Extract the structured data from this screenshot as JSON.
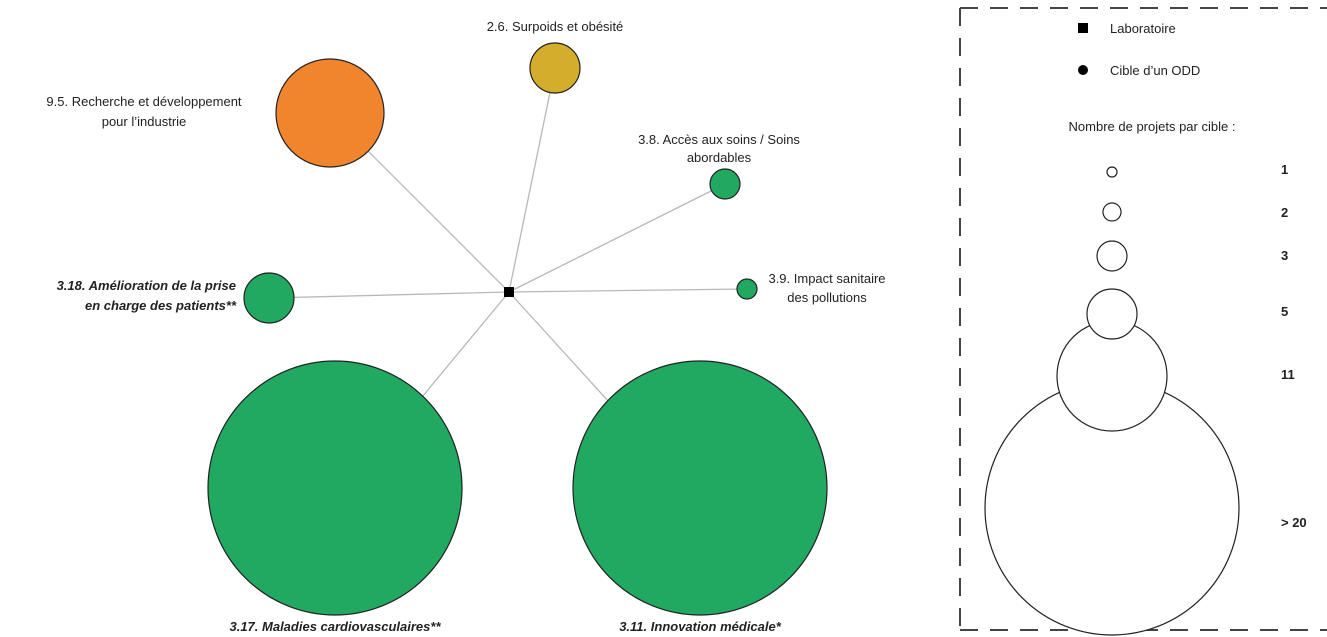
{
  "diagram": {
    "hub": {
      "label": ""
    },
    "nodes": [
      {
        "id": "sdg-9-5",
        "label_lines": [
          "9.5. Recherche et développement",
          "pour l’industrie"
        ],
        "color": "#f0852d",
        "emphasis": false,
        "projects": 5
      },
      {
        "id": "sdg-2-6",
        "label_lines": [
          "2.6. Surpoids et obésité"
        ],
        "color": "#d3ad2b",
        "emphasis": false,
        "projects": 2
      },
      {
        "id": "sdg-3-8",
        "label_lines": [
          "3.8. Accès aux soins / Soins",
          "abordables"
        ],
        "color": "#21a861",
        "emphasis": false,
        "projects": 1
      },
      {
        "id": "sdg-3-9",
        "label_lines": [
          "3.9. Impact sanitaire",
          "des pollutions"
        ],
        "color": "#21a861",
        "emphasis": false,
        "projects": 1
      },
      {
        "id": "sdg-3-18",
        "label_lines": [
          "3.18. Amélioration de la prise",
          "en charge des patients**"
        ],
        "color": "#21a861",
        "emphasis": true,
        "projects": 2
      },
      {
        "id": "sdg-3-17",
        "label_lines": [
          "3.17. Maladies cardiovasculaires**"
        ],
        "color": "#21a861",
        "emphasis": true,
        "projects": ">20"
      },
      {
        "id": "sdg-3-11",
        "label_lines": [
          "3.11. Innovation médicale*"
        ],
        "color": "#21a861",
        "emphasis": true,
        "projects": ">20"
      }
    ]
  },
  "legend": {
    "laboratory_label": "Laboratoire",
    "target_label": "Cible d’un ODD",
    "size_title": "Nombre de projets par cible :",
    "sizes": [
      {
        "label": "1"
      },
      {
        "label": "2"
      },
      {
        "label": "3"
      },
      {
        "label": "5"
      },
      {
        "label": "11"
      },
      {
        "label": "> 20"
      }
    ]
  }
}
